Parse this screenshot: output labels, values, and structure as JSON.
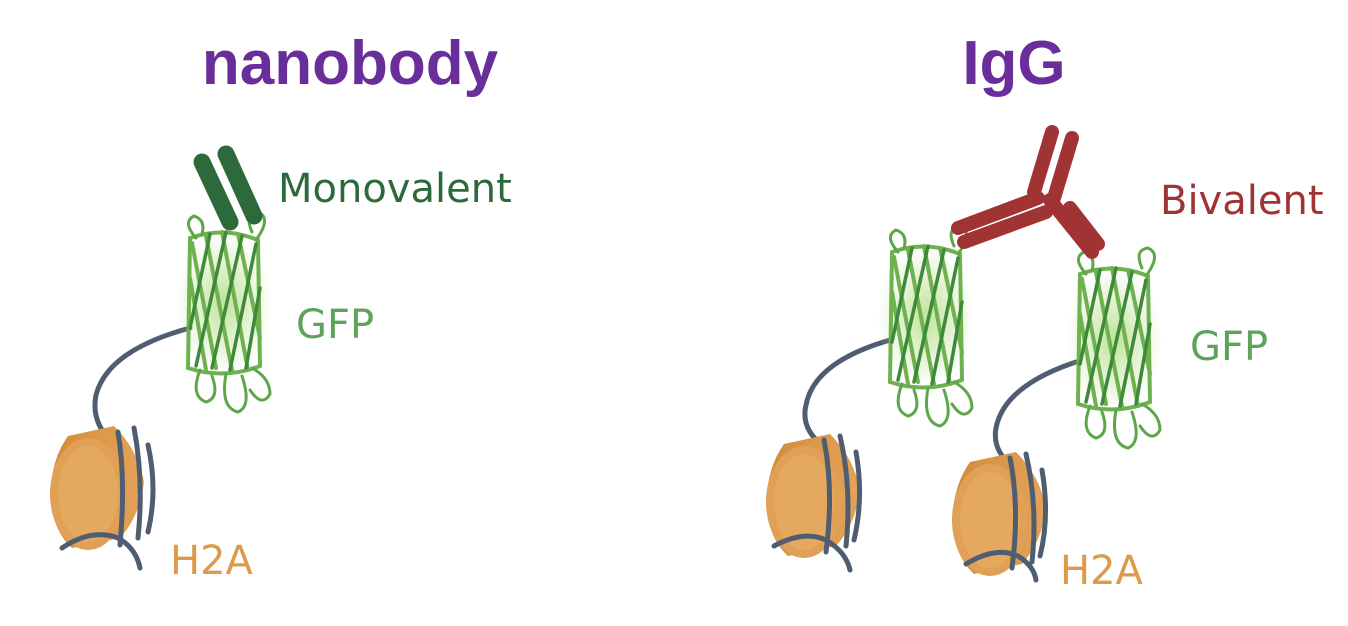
{
  "panels": [
    {
      "title": "nanobody",
      "antibody_label": "Monovalent",
      "gfp_label": "GFP",
      "histone_label": "H2A"
    },
    {
      "title": "IgG",
      "antibody_label": "Bivalent",
      "gfp_label": "GFP",
      "histone_label": "H2A"
    }
  ],
  "colors": {
    "title": "#6a2e9a",
    "nanobody": "#2d6a3b",
    "igg": "#a03434",
    "gfp": "#6db24f",
    "histone": "#dd9a48",
    "dna": "#4f5d71"
  }
}
